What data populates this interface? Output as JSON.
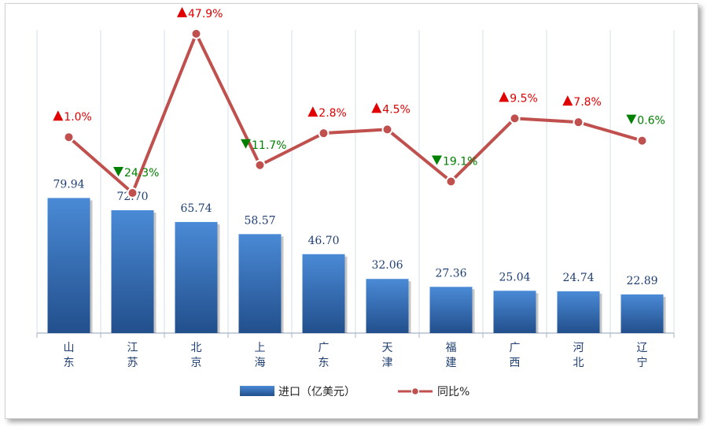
{
  "chart_data": {
    "type": "bar",
    "categories": [
      "山东",
      "江苏",
      "北京",
      "上海",
      "广东",
      "天津",
      "福建",
      "广西",
      "河北",
      "辽宁"
    ],
    "series": [
      {
        "name": "进口（亿美元）",
        "type": "bar",
        "values": [
          79.94,
          72.7,
          65.74,
          58.57,
          46.7,
          32.06,
          27.36,
          25.04,
          24.74,
          22.89
        ],
        "labels": [
          "79.94",
          "72.70",
          "65.74",
          "58.57",
          "46.70",
          "32.06",
          "27.36",
          "25.04",
          "24.74",
          "22.89"
        ],
        "color": "#3a78c8"
      },
      {
        "name": "同比%",
        "type": "line",
        "values": [
          1.0,
          -24.3,
          47.9,
          -11.7,
          2.8,
          4.5,
          -19.1,
          9.5,
          7.8,
          -0.6
        ],
        "labels": [
          "1.0%",
          "24.3%",
          "47.9%",
          "11.7%",
          "2.8%",
          "4.5%",
          "19.1%",
          "9.5%",
          "7.8%",
          "0.6%"
        ],
        "color": "#c0504d"
      }
    ],
    "grid": "vertical",
    "legend": "bottom-center",
    "colors": {
      "up": "#e00000",
      "down": "#008000",
      "axis": "#a6b4c8",
      "grid": "#d9e1ec"
    }
  }
}
